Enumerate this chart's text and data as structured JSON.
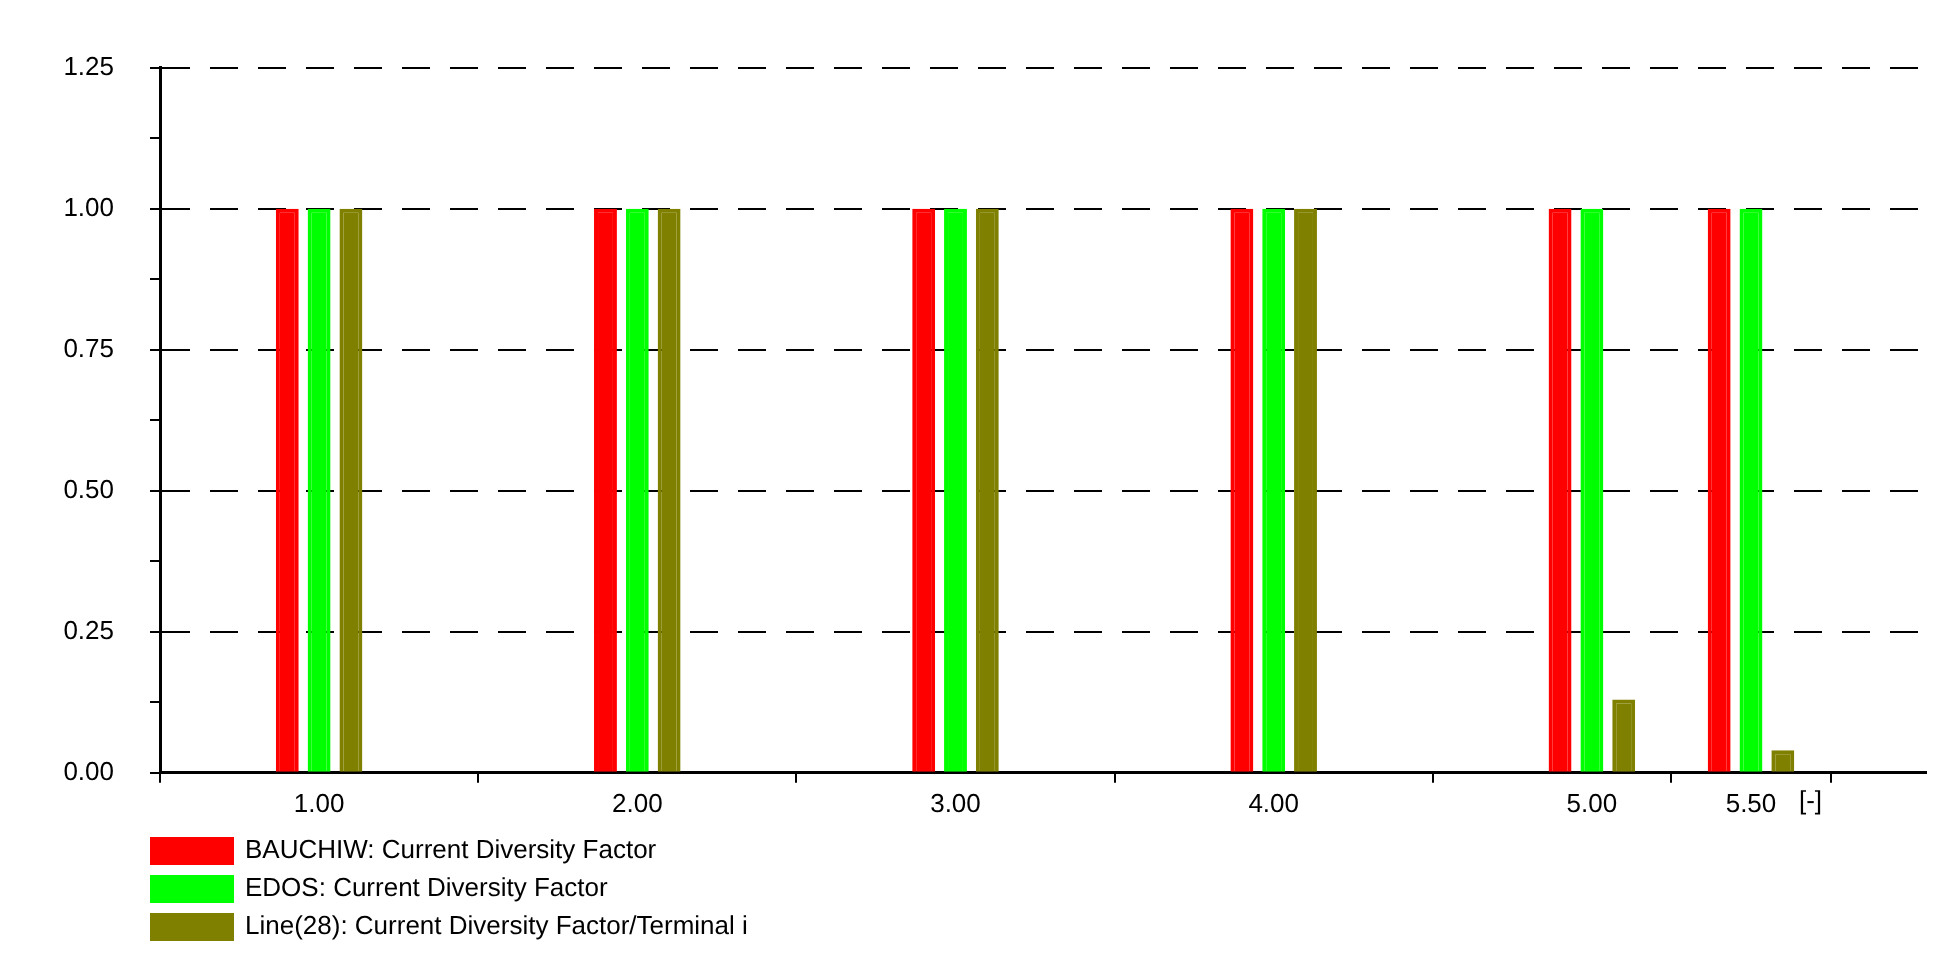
{
  "chart_data": {
    "type": "bar",
    "x": [
      1,
      2,
      3,
      4,
      5,
      5.5
    ],
    "xlabel": "[-]",
    "xlim": [
      0.5,
      6.05
    ],
    "xticks": [
      {
        "value": 1,
        "label": "1.00"
      },
      {
        "value": 2,
        "label": "2.00"
      },
      {
        "value": 3,
        "label": "3.00"
      },
      {
        "value": 4,
        "label": "4.00"
      },
      {
        "value": 5,
        "label": "5.00"
      },
      {
        "value": 5.5,
        "label": "5.50"
      }
    ],
    "ylim": [
      0,
      1.25
    ],
    "yticks": [
      {
        "value": 0,
        "label": "0.00"
      },
      {
        "value": 0.125,
        "label": null
      },
      {
        "value": 0.25,
        "label": "0.25"
      },
      {
        "value": 0.375,
        "label": null
      },
      {
        "value": 0.5,
        "label": "0.50"
      },
      {
        "value": 0.625,
        "label": null
      },
      {
        "value": 0.75,
        "label": "0.75"
      },
      {
        "value": 0.875,
        "label": null
      },
      {
        "value": 1,
        "label": "1.00"
      },
      {
        "value": 1.125,
        "label": null
      },
      {
        "value": 1.25,
        "label": "1.25"
      }
    ],
    "grid": "y",
    "legend": "bottom left",
    "series": [
      {
        "name": "BAUCHIW: Current Diversity Factor",
        "color": "#ff0000",
        "values": [
          1,
          1,
          1,
          1,
          1,
          1
        ]
      },
      {
        "name": "EDOS: Current Diversity Factor",
        "color": "#00ff00",
        "values": [
          1,
          1,
          1,
          1,
          1,
          1
        ]
      },
      {
        "name": "Line(28): Current Diversity Factor/Terminal i",
        "color": "#808000",
        "values": [
          1,
          1,
          1,
          1,
          0.13,
          0.04
        ]
      }
    ]
  }
}
